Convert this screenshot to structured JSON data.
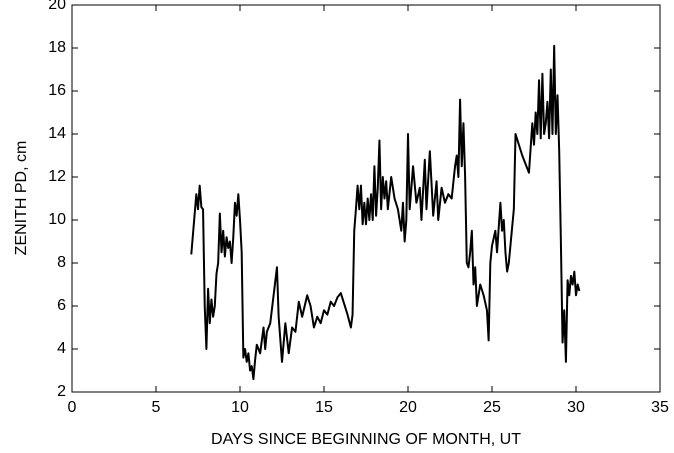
{
  "chart_data": {
    "type": "line",
    "xlabel": "DAYS SINCE BEGINNING OF MONTH, UT",
    "ylabel": "ZENITH PD, cm",
    "xlim": [
      0,
      35
    ],
    "ylim": [
      2,
      20
    ],
    "xticks": [
      0,
      5,
      10,
      15,
      20,
      25,
      30,
      35
    ],
    "yticks": [
      2,
      4,
      6,
      8,
      10,
      12,
      14,
      16,
      18,
      20
    ],
    "x": [
      7.1,
      7.4,
      7.5,
      7.6,
      7.7,
      7.8,
      7.9,
      8.0,
      8.1,
      8.2,
      8.3,
      8.4,
      8.5,
      8.6,
      8.7,
      8.8,
      8.9,
      9.0,
      9.1,
      9.2,
      9.3,
      9.4,
      9.5,
      9.6,
      9.7,
      9.8,
      9.9,
      10.0,
      10.1,
      10.2,
      10.3,
      10.4,
      10.5,
      10.6,
      10.7,
      10.8,
      10.9,
      11.0,
      11.2,
      11.4,
      11.5,
      11.6,
      11.8,
      12.0,
      12.2,
      12.3,
      12.5,
      12.7,
      12.9,
      13.1,
      13.3,
      13.5,
      13.7,
      14.0,
      14.2,
      14.4,
      14.6,
      14.8,
      15.0,
      15.2,
      15.4,
      15.6,
      15.8,
      16.0,
      16.4,
      16.6,
      16.7,
      16.8,
      16.9,
      17.0,
      17.1,
      17.2,
      17.3,
      17.4,
      17.5,
      17.6,
      17.7,
      17.8,
      17.9,
      18.0,
      18.1,
      18.2,
      18.3,
      18.4,
      18.5,
      18.6,
      18.7,
      18.8,
      19.0,
      19.2,
      19.4,
      19.6,
      19.7,
      19.8,
      19.9,
      20.0,
      20.1,
      20.3,
      20.5,
      20.7,
      20.8,
      21.0,
      21.1,
      21.3,
      21.5,
      21.7,
      21.8,
      22.0,
      22.2,
      22.4,
      22.6,
      22.8,
      22.9,
      23.0,
      23.1,
      23.2,
      23.3,
      23.4,
      23.5,
      23.6,
      23.7,
      23.8,
      23.9,
      24.0,
      24.1,
      24.3,
      24.5,
      24.7,
      24.8,
      24.9,
      25.0,
      25.2,
      25.3,
      25.5,
      25.6,
      25.7,
      25.8,
      25.9,
      26.0,
      26.3,
      26.4,
      26.6,
      26.8,
      27.2,
      27.4,
      27.5,
      27.6,
      27.7,
      27.8,
      27.9,
      28.0,
      28.1,
      28.2,
      28.3,
      28.4,
      28.5,
      28.6,
      28.7,
      28.8,
      28.9,
      29.0,
      29.1,
      29.2,
      29.3,
      29.4,
      29.5,
      29.6,
      29.7,
      29.8,
      29.9,
      30.0,
      30.1,
      30.2
    ],
    "series": [
      {
        "color": "#000000",
        "values": [
          8.4,
          11.2,
          10.5,
          11.6,
          10.6,
          10.5,
          6.0,
          4.0,
          6.8,
          5.2,
          6.3,
          5.5,
          6.0,
          7.5,
          8.0,
          10.3,
          8.5,
          9.5,
          8.3,
          9.2,
          8.7,
          9.0,
          8.0,
          9.2,
          10.8,
          10.2,
          11.2,
          10.0,
          8.5,
          3.6,
          4.0,
          3.4,
          3.8,
          3.0,
          3.2,
          2.6,
          3.5,
          4.2,
          3.8,
          5.0,
          4.0,
          4.8,
          5.2,
          6.5,
          7.8,
          5.5,
          3.4,
          5.2,
          3.8,
          5.0,
          4.8,
          6.2,
          5.5,
          6.5,
          6.0,
          5.0,
          5.5,
          5.2,
          5.8,
          5.6,
          6.2,
          6.0,
          6.4,
          6.6,
          5.6,
          5.0,
          5.6,
          9.5,
          10.5,
          11.6,
          10.5,
          11.6,
          9.8,
          10.8,
          9.8,
          11.0,
          10.0,
          11.2,
          10.0,
          12.5,
          10.2,
          11.5,
          13.7,
          10.5,
          12.0,
          11.0,
          11.8,
          10.5,
          12.0,
          11.0,
          10.5,
          9.5,
          10.8,
          9.0,
          10.0,
          14.0,
          10.5,
          12.5,
          10.8,
          11.5,
          10.0,
          12.8,
          10.5,
          13.2,
          10.2,
          11.8,
          10.0,
          11.5,
          10.8,
          11.2,
          11.0,
          12.5,
          13.0,
          12.0,
          15.6,
          12.5,
          14.5,
          12.0,
          8.0,
          7.8,
          8.5,
          9.5,
          7.0,
          7.8,
          6.0,
          7.0,
          6.5,
          5.8,
          4.4,
          8.0,
          8.8,
          9.5,
          8.5,
          10.8,
          9.5,
          10.0,
          8.5,
          7.6,
          8.0,
          10.5,
          14.0,
          13.5,
          13.0,
          12.2,
          14.5,
          13.5,
          15.0,
          14.0,
          16.5,
          13.8,
          16.8,
          14.0,
          14.5,
          15.5,
          13.8,
          17.0,
          14.0,
          18.1,
          14.0,
          15.8,
          13.2,
          9.0,
          4.3,
          5.8,
          3.4,
          7.2,
          6.5,
          7.4,
          7.0,
          7.6,
          6.5,
          7.0,
          6.7
        ]
      }
    ]
  }
}
